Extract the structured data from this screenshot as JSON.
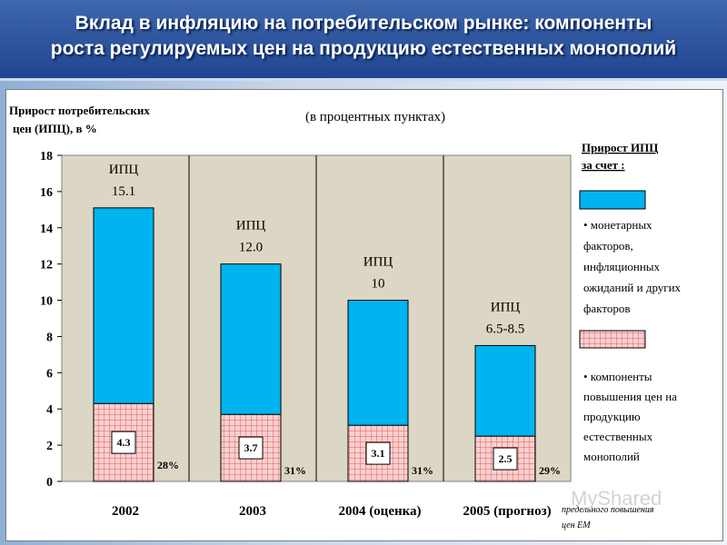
{
  "header": {
    "title_line1": "Вклад в инфляцию на потребительском рынке: компоненты",
    "title_line2": "роста регулируемых цен на продукцию естественных монополий"
  },
  "chart_data": {
    "type": "bar",
    "title": "(в процентных пунктах)",
    "ylabel_line1": "Прирост потребительских",
    "ylabel_line2": "цен (ИПЦ), в %",
    "ylim": [
      0,
      18
    ],
    "yticks": [
      0,
      2,
      4,
      6,
      8,
      10,
      12,
      14,
      16,
      18
    ],
    "categories": [
      "2002",
      "2003",
      "2004 (оценка)",
      "2005 (прогноз)"
    ],
    "series": [
      {
        "name": "компоненты повышения цен на продукцию естественных монополий",
        "values": [
          4.3,
          3.7,
          3.1,
          2.5
        ],
        "color": "#f7c8c8"
      },
      {
        "name": "монетарных факторов, инфляционных ожиданий и других факторов",
        "values": [
          10.8,
          8.3,
          6.9,
          5.0
        ],
        "color": "#00b4ef"
      }
    ],
    "totals": [
      15.1,
      12.0,
      10,
      7.5
    ],
    "ipc_label": "ИПЦ",
    "total_labels": [
      "15.1",
      "12.0",
      "10",
      "6.5-8.5"
    ],
    "component_labels": [
      "4.3",
      "3.7",
      "3.1",
      "2.5"
    ],
    "share_labels": [
      "28%",
      "31%",
      "31%",
      "29%"
    ],
    "legend": {
      "title_line1": "Прирост ИПЦ",
      "title_line2": "за счет  :",
      "blue_lines": [
        "• монетарных",
        "факторов,",
        "инфляционных",
        "ожиданий и других",
        "факторов"
      ],
      "red_lines": [
        "• компоненты",
        "повышения цен на",
        "продукцию",
        "естественных",
        "монополий"
      ]
    },
    "footnote_line1": "предельного повышения",
    "footnote_line2": "цен ЕМ",
    "grid": true,
    "legend_position": "right"
  },
  "watermark": "MyShared"
}
